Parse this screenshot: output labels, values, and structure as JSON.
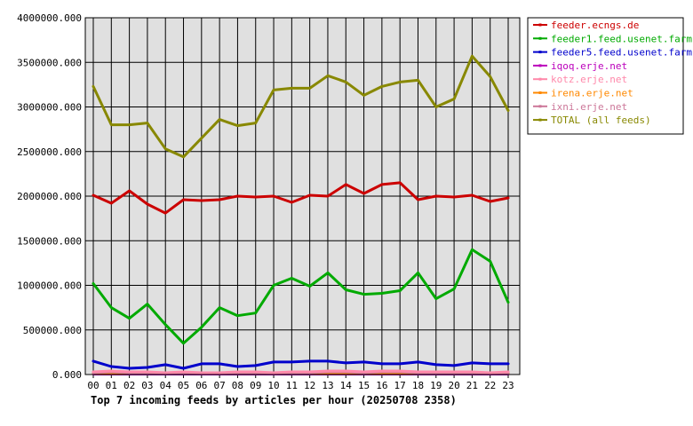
{
  "chart_data": {
    "type": "line",
    "title": "Top 7 incoming feeds by articles per hour (20250708 2358)",
    "xlabel": "",
    "ylabel": "",
    "categories": [
      "00",
      "01",
      "02",
      "03",
      "04",
      "05",
      "06",
      "07",
      "08",
      "09",
      "10",
      "11",
      "12",
      "13",
      "14",
      "15",
      "16",
      "17",
      "18",
      "19",
      "20",
      "21",
      "22",
      "23"
    ],
    "ylim": [
      0,
      4000000
    ],
    "yticks": [
      0,
      500000,
      1000000,
      1500000,
      2000000,
      2500000,
      3000000,
      3500000,
      4000000
    ],
    "ytick_labels": [
      "0.000",
      "500000.000",
      "1000000.000",
      "1500000.000",
      "2000000.000",
      "2500000.000",
      "3000000.000",
      "3500000.000",
      "4000000.000"
    ],
    "grid": true,
    "legend_position": "top-right",
    "series": [
      {
        "name": "feeder.ecngs.de",
        "color": "#cc0000",
        "values": [
          2010000,
          1920000,
          2060000,
          1910000,
          1810000,
          1960000,
          1950000,
          1960000,
          2000000,
          1990000,
          2000000,
          1930000,
          2010000,
          2000000,
          2130000,
          2030000,
          2130000,
          2150000,
          1960000,
          2000000,
          1990000,
          2010000,
          1940000,
          1980000
        ]
      },
      {
        "name": "feeder1.feed.usenet.farm",
        "color": "#00aa00",
        "values": [
          1020000,
          750000,
          630000,
          790000,
          560000,
          350000,
          530000,
          750000,
          660000,
          690000,
          1000000,
          1080000,
          990000,
          1140000,
          950000,
          900000,
          910000,
          940000,
          1140000,
          850000,
          960000,
          1400000,
          1270000,
          810000
        ]
      },
      {
        "name": "feeder5.feed.usenet.farm",
        "color": "#0000cc",
        "values": [
          150000,
          90000,
          70000,
          80000,
          110000,
          70000,
          120000,
          120000,
          90000,
          100000,
          140000,
          140000,
          150000,
          150000,
          130000,
          140000,
          120000,
          120000,
          140000,
          110000,
          100000,
          130000,
          120000,
          120000
        ]
      },
      {
        "name": "iqoq.erje.net",
        "color": "#bb00bb",
        "values": [
          5000,
          5000,
          5000,
          5000,
          5000,
          5000,
          5000,
          5000,
          5000,
          5000,
          5000,
          5000,
          5000,
          5000,
          5000,
          5000,
          5000,
          5000,
          5000,
          5000,
          5000,
          5000,
          5000,
          5000
        ]
      },
      {
        "name": "kotz.erje.net",
        "color": "#ff88aa",
        "values": [
          30000,
          40000,
          30000,
          30000,
          20000,
          30000,
          20000,
          20000,
          30000,
          30000,
          20000,
          30000,
          30000,
          40000,
          40000,
          30000,
          40000,
          40000,
          30000,
          30000,
          30000,
          30000,
          20000,
          30000
        ]
      },
      {
        "name": "irena.erje.net",
        "color": "#ff8800",
        "values": [
          10000,
          10000,
          10000,
          10000,
          10000,
          10000,
          10000,
          10000,
          10000,
          10000,
          10000,
          10000,
          10000,
          10000,
          10000,
          10000,
          10000,
          10000,
          10000,
          10000,
          10000,
          10000,
          10000,
          10000
        ]
      },
      {
        "name": "ixni.erje.net",
        "color": "#cc7799",
        "values": [
          20000,
          30000,
          20000,
          20000,
          10000,
          20000,
          10000,
          10000,
          20000,
          20000,
          10000,
          20000,
          20000,
          30000,
          30000,
          20000,
          30000,
          30000,
          20000,
          20000,
          20000,
          20000,
          10000,
          20000
        ]
      },
      {
        "name": "TOTAL (all feeds)",
        "color": "#888800",
        "values": [
          3230000,
          2800000,
          2800000,
          2820000,
          2530000,
          2440000,
          2650000,
          2860000,
          2790000,
          2820000,
          3190000,
          3210000,
          3210000,
          3350000,
          3280000,
          3130000,
          3230000,
          3280000,
          3300000,
          3000000,
          3090000,
          3570000,
          3340000,
          2960000
        ]
      }
    ]
  }
}
